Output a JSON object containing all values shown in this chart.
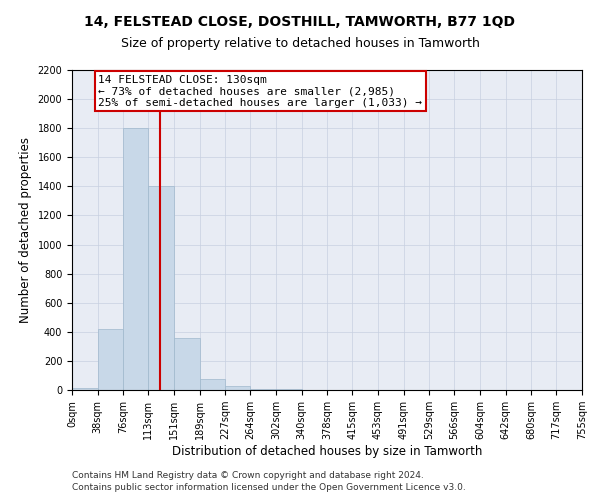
{
  "title": "14, FELSTEAD CLOSE, DOSTHILL, TAMWORTH, B77 1QD",
  "subtitle": "Size of property relative to detached houses in Tamworth",
  "xlabel": "Distribution of detached houses by size in Tamworth",
  "ylabel": "Number of detached properties",
  "footer_line1": "Contains HM Land Registry data © Crown copyright and database right 2024.",
  "footer_line2": "Contains public sector information licensed under the Open Government Licence v3.0.",
  "bin_edges": [
    0,
    38,
    76,
    113,
    151,
    189,
    227,
    264,
    302,
    340,
    378,
    415,
    453,
    491,
    529,
    566,
    604,
    642,
    680,
    717,
    755
  ],
  "bar_heights": [
    15,
    420,
    1800,
    1400,
    360,
    75,
    25,
    10,
    5,
    2,
    2,
    1,
    1,
    0,
    0,
    0,
    0,
    0,
    0,
    0
  ],
  "bar_color": "#c8d8e8",
  "bar_edge_color": "#a0b8cc",
  "property_line_x": 130,
  "property_line_color": "#cc0000",
  "annotation_line1": "14 FELSTEAD CLOSE: 130sqm",
  "annotation_line2": "← 73% of detached houses are smaller (2,985)",
  "annotation_line3": "25% of semi-detached houses are larger (1,033) →",
  "annotation_box_color": "#ffffff",
  "annotation_box_edge_color": "#cc0000",
  "ylim_max": 2200,
  "yticks": [
    0,
    200,
    400,
    600,
    800,
    1000,
    1200,
    1400,
    1600,
    1800,
    2000,
    2200
  ],
  "grid_color": "#c8d0e0",
  "bg_color": "#e8ecf4",
  "title_fontsize": 10,
  "subtitle_fontsize": 9,
  "xlabel_fontsize": 8.5,
  "ylabel_fontsize": 8.5,
  "tick_fontsize": 7,
  "annotation_fontsize": 8,
  "footer_fontsize": 6.5
}
